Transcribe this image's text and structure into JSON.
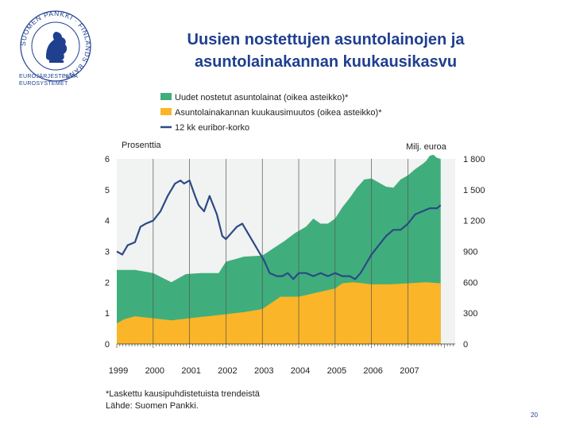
{
  "logo": {
    "ring_text": "SUOMEN PANKKI · FINLANDS BANK",
    "sub_line1": "EUROJÄRJESTELMÄ",
    "sub_line2": "EUROSYSTEMET"
  },
  "title": {
    "line1": "Uusien nostettujen asuntolainojen ja",
    "line2": "asuntolainakannan kuukausikasvu"
  },
  "slide_number": "20",
  "colors": {
    "green": "#3fae7c",
    "orange": "#fbb528",
    "blue": "#2b4a84",
    "title": "#1f3f8f"
  },
  "chart_data": {
    "type": "area",
    "legend": [
      "Uudet nostetut asuntolainat (oikea asteikko)*",
      "Asuntolainakannan kuukausimuutos (oikea asteikko)*",
      "12 kk euribor-korko"
    ],
    "left_axis": {
      "label": "Prosenttia",
      "range": [
        0,
        6
      ],
      "ticks": [
        "0",
        "1",
        "2",
        "3",
        "4",
        "5",
        "6"
      ]
    },
    "right_axis": {
      "label": "Milj. euroa",
      "range": [
        0,
        1800
      ],
      "ticks": [
        "0",
        "300",
        "600",
        "900",
        "1 200",
        "1 500",
        "1 800"
      ]
    },
    "x_labels": [
      "1999",
      "2000",
      "2001",
      "2002",
      "2003",
      "2004",
      "2005",
      "2006",
      "2007"
    ],
    "x_range": [
      1999.0,
      2008.3
    ],
    "gridlines": "vertical at year starts",
    "series": [
      {
        "name": "Uudet nostetut asuntolainat",
        "axis": "right",
        "x": [
          1999.0,
          1999.5,
          2000.0,
          2000.5,
          2000.9,
          2001.3,
          2001.8,
          2002.0,
          2002.5,
          2003.0,
          2003.3,
          2003.6,
          2003.9,
          2004.2,
          2004.4,
          2004.6,
          2004.8,
          2005.0,
          2005.2,
          2005.4,
          2005.6,
          2005.8,
          2006.0,
          2006.2,
          2006.4,
          2006.6,
          2006.8,
          2007.0,
          2007.2,
          2007.4,
          2007.5,
          2007.6,
          2007.7,
          2007.8,
          2007.9
        ],
        "values": [
          720,
          720,
          690,
          600,
          680,
          690,
          690,
          800,
          850,
          860,
          930,
          1000,
          1080,
          1140,
          1220,
          1170,
          1170,
          1220,
          1330,
          1420,
          1520,
          1600,
          1610,
          1570,
          1530,
          1520,
          1600,
          1640,
          1700,
          1750,
          1780,
          1830,
          1840,
          1810,
          1800
        ]
      },
      {
        "name": "Asuntolainakannan kuukausimuutos",
        "axis": "right",
        "x": [
          1999.0,
          1999.2,
          1999.5,
          2000.0,
          2000.5,
          2001.0,
          2001.5,
          2002.0,
          2002.5,
          2003.0,
          2003.5,
          2004.0,
          2004.5,
          2005.0,
          2005.2,
          2005.5,
          2006.0,
          2006.5,
          2007.0,
          2007.5,
          2007.9
        ],
        "values": [
          200,
          240,
          270,
          250,
          230,
          250,
          270,
          290,
          310,
          340,
          460,
          460,
          500,
          540,
          590,
          600,
          580,
          580,
          590,
          600,
          590
        ]
      },
      {
        "name": "12 kk euribor-korko",
        "axis": "left",
        "x": [
          1999.0,
          1999.15,
          1999.3,
          1999.5,
          1999.65,
          1999.8,
          2000.0,
          2000.2,
          2000.4,
          2000.6,
          2000.75,
          2000.85,
          2001.0,
          2001.15,
          2001.25,
          2001.4,
          2001.55,
          2001.75,
          2001.9,
          2002.0,
          2002.15,
          2002.3,
          2002.45,
          2002.6,
          2002.75,
          2002.9,
          2003.05,
          2003.2,
          2003.4,
          2003.55,
          2003.7,
          2003.85,
          2004.0,
          2004.2,
          2004.4,
          2004.6,
          2004.8,
          2005.0,
          2005.2,
          2005.4,
          2005.55,
          2005.7,
          2005.85,
          2006.0,
          2006.2,
          2006.4,
          2006.6,
          2006.8,
          2007.0,
          2007.2,
          2007.4,
          2007.6,
          2007.8,
          2007.9
        ],
        "values": [
          3.0,
          2.9,
          3.2,
          3.3,
          3.8,
          3.9,
          4.0,
          4.3,
          4.8,
          5.2,
          5.3,
          5.2,
          5.3,
          4.8,
          4.5,
          4.3,
          4.8,
          4.2,
          3.5,
          3.4,
          3.6,
          3.8,
          3.9,
          3.6,
          3.3,
          3.0,
          2.7,
          2.3,
          2.2,
          2.2,
          2.3,
          2.1,
          2.3,
          2.3,
          2.2,
          2.3,
          2.2,
          2.3,
          2.2,
          2.2,
          2.1,
          2.3,
          2.6,
          2.9,
          3.2,
          3.5,
          3.7,
          3.7,
          3.9,
          4.2,
          4.3,
          4.4,
          4.4,
          4.5
        ]
      }
    ],
    "footnote": "*Laskettu kausipuhdistetuista trendeistä",
    "source": "Lähde: Suomen Pankki."
  }
}
